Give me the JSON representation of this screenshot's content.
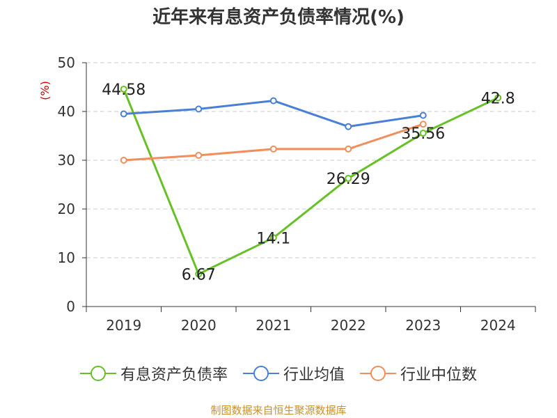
{
  "title": "近年来有息资产负债率情况(%)",
  "source": "制图数据来自恒生聚源数据库",
  "chart_data": {
    "type": "line",
    "title": "近年来有息资产负债率情况(%)",
    "categories": [
      "2019",
      "2020",
      "2021",
      "2022",
      "2023",
      "2024"
    ],
    "ylabel": "(%)",
    "ylim": [
      0,
      50
    ],
    "yticks": [
      0,
      10,
      20,
      30,
      40,
      50
    ],
    "grid": true,
    "legend_position": "bottom",
    "series": [
      {
        "name": "有息资产负债率",
        "color": "#66c127",
        "values": [
          44.58,
          6.67,
          14.1,
          26.29,
          35.56,
          42.8
        ],
        "labels": [
          "44.58",
          "6.67",
          "14.1",
          "26.29",
          "35.56",
          "42.8"
        ]
      },
      {
        "name": "行业均值",
        "color": "#4a7fd6",
        "values": [
          39.5,
          40.5,
          42.2,
          36.9,
          39.2,
          null
        ]
      },
      {
        "name": "行业中位数",
        "color": "#f28e5c",
        "values": [
          30.0,
          31.0,
          32.3,
          32.3,
          37.4,
          null
        ]
      }
    ]
  }
}
